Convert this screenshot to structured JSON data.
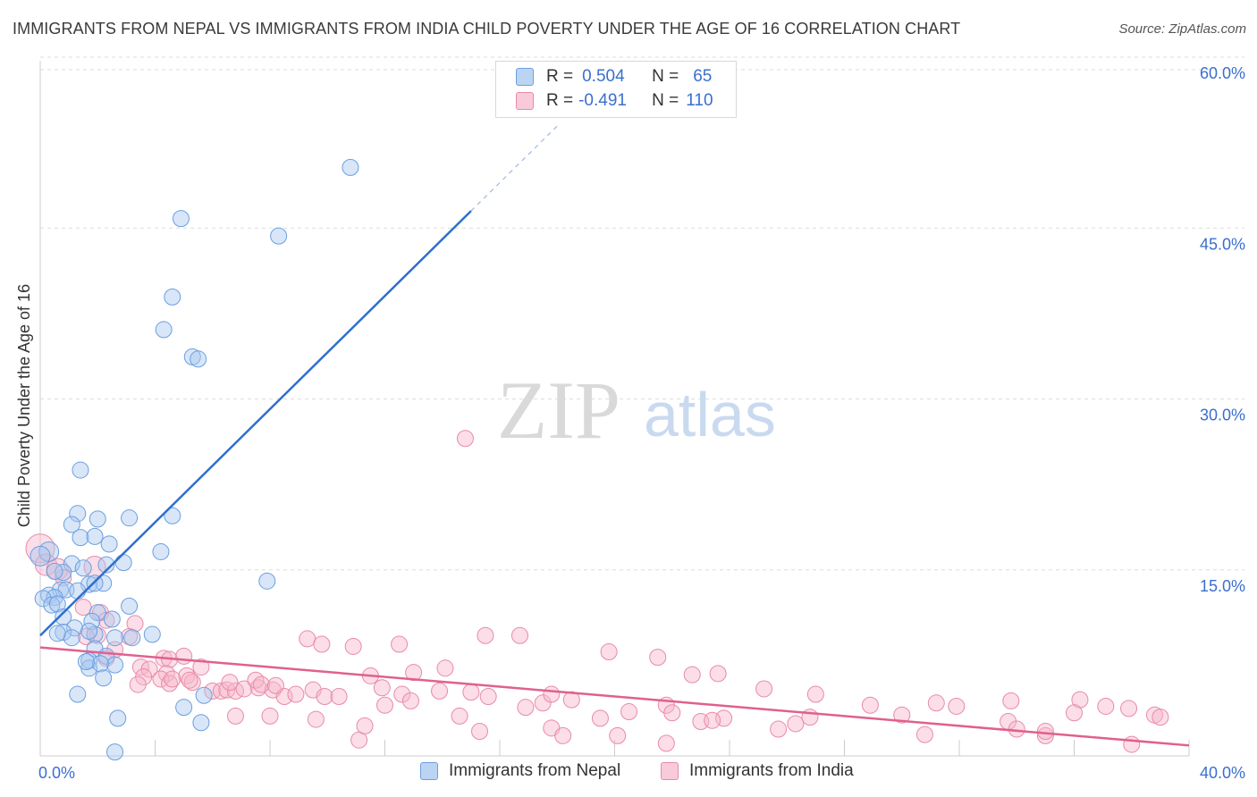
{
  "title": "IMMIGRANTS FROM NEPAL VS IMMIGRANTS FROM INDIA CHILD POVERTY UNDER THE AGE OF 16 CORRELATION CHART",
  "source": "Source: ZipAtlas.com",
  "watermark": {
    "zip": "ZIP",
    "atlas": "atlas"
  },
  "legend": {
    "r_label": "R =",
    "n_label": "N =",
    "nepal": {
      "r": "0.504",
      "n": "65"
    },
    "india": {
      "r": "-0.491",
      "n": "110"
    }
  },
  "colors": {
    "nepal_fill": "#a9c8f0",
    "nepal_stroke": "#6b9fe0",
    "nepal_line": "#2e6fcf",
    "india_fill": "#f6b6ca",
    "india_stroke": "#e98aa8",
    "india_line": "#e0608f",
    "grid": "#dddddd",
    "tick_label": "#3a6fcf"
  },
  "chart_data": {
    "type": "scatter",
    "title": "IMMIGRANTS FROM NEPAL VS IMMIGRANTS FROM INDIA CHILD POVERTY UNDER THE AGE OF 16 CORRELATION CHART",
    "xlabel": "",
    "ylabel": "Child Poverty Under the Age of 16",
    "xlim": [
      0,
      40
    ],
    "ylim": [
      0,
      60
    ],
    "x_tick_labels": [
      "0.0%",
      "40.0%"
    ],
    "y_ticks": [
      15,
      30,
      45,
      60
    ],
    "y_tick_labels": [
      "15.0%",
      "30.0%",
      "45.0%",
      "60.0%"
    ],
    "legend_position": "top-center",
    "series": [
      {
        "name": "Immigrants from Nepal",
        "trend": {
          "x0": 0,
          "y0": 9.5,
          "x1": 15.0,
          "y1": 48.5,
          "dash_to_x": 18.0
        },
        "points": [
          [
            10.8,
            52.5
          ],
          [
            4.9,
            47.8
          ],
          [
            8.3,
            46.2
          ],
          [
            4.6,
            40.6
          ],
          [
            4.3,
            37.6
          ],
          [
            5.3,
            35.1
          ],
          [
            5.5,
            34.9
          ],
          [
            1.4,
            24.7
          ],
          [
            1.3,
            20.7
          ],
          [
            2.0,
            20.2
          ],
          [
            1.1,
            19.7
          ],
          [
            4.6,
            20.5
          ],
          [
            3.1,
            20.3
          ],
          [
            1.4,
            18.5
          ],
          [
            1.9,
            18.6
          ],
          [
            2.4,
            17.9
          ],
          [
            0.3,
            17.2
          ],
          [
            0.0,
            16.8
          ],
          [
            4.2,
            17.2
          ],
          [
            1.1,
            16.1
          ],
          [
            2.9,
            16.2
          ],
          [
            2.3,
            16.0
          ],
          [
            1.5,
            15.7
          ],
          [
            0.8,
            15.3
          ],
          [
            0.5,
            15.4
          ],
          [
            2.2,
            14.3
          ],
          [
            1.7,
            14.2
          ],
          [
            1.9,
            14.3
          ],
          [
            7.9,
            14.5
          ],
          [
            0.7,
            13.7
          ],
          [
            0.9,
            13.7
          ],
          [
            1.3,
            13.6
          ],
          [
            0.3,
            13.2
          ],
          [
            0.5,
            13.0
          ],
          [
            0.1,
            12.9
          ],
          [
            0.4,
            12.3
          ],
          [
            0.6,
            12.4
          ],
          [
            3.1,
            12.2
          ],
          [
            2.0,
            11.6
          ],
          [
            0.8,
            11.2
          ],
          [
            2.5,
            11.0
          ],
          [
            1.8,
            10.8
          ],
          [
            1.2,
            10.2
          ],
          [
            0.8,
            9.8
          ],
          [
            2.6,
            9.3
          ],
          [
            1.9,
            9.6
          ],
          [
            1.7,
            9.9
          ],
          [
            1.1,
            9.3
          ],
          [
            3.2,
            9.3
          ],
          [
            1.9,
            8.3
          ],
          [
            3.9,
            9.6
          ],
          [
            2.3,
            7.6
          ],
          [
            1.7,
            7.2
          ],
          [
            1.7,
            6.5
          ],
          [
            2.6,
            6.8
          ],
          [
            2.1,
            6.9
          ],
          [
            1.6,
            7.1
          ],
          [
            2.2,
            5.6
          ],
          [
            0.6,
            9.7
          ],
          [
            1.3,
            4.1
          ],
          [
            5.7,
            4.0
          ],
          [
            5.0,
            2.9
          ],
          [
            2.7,
            1.9
          ],
          [
            5.6,
            1.5
          ],
          [
            2.6,
            -1.2
          ]
        ]
      },
      {
        "name": "Immigrants from India",
        "trend": {
          "x0": 0,
          "y0": 8.4,
          "x1": 40,
          "y1": -0.6
        },
        "points": [
          [
            0.0,
            17.5
          ],
          [
            0.2,
            16.0
          ],
          [
            0.6,
            15.6
          ],
          [
            1.9,
            15.8
          ],
          [
            0.8,
            14.8
          ],
          [
            1.5,
            12.1
          ],
          [
            2.1,
            11.6
          ],
          [
            2.3,
            10.9
          ],
          [
            3.3,
            10.6
          ],
          [
            2.0,
            9.5
          ],
          [
            1.6,
            9.4
          ],
          [
            14.8,
            27.6
          ],
          [
            3.1,
            9.4
          ],
          [
            2.6,
            8.2
          ],
          [
            2.3,
            7.4
          ],
          [
            4.3,
            7.4
          ],
          [
            4.5,
            7.3
          ],
          [
            5.0,
            7.6
          ],
          [
            5.6,
            6.6
          ],
          [
            3.5,
            6.6
          ],
          [
            3.8,
            6.4
          ],
          [
            4.4,
            6.0
          ],
          [
            3.6,
            5.7
          ],
          [
            5.1,
            5.8
          ],
          [
            5.3,
            5.2
          ],
          [
            4.2,
            5.5
          ],
          [
            3.4,
            5.0
          ],
          [
            4.5,
            5.1
          ],
          [
            6.0,
            4.4
          ],
          [
            6.3,
            4.4
          ],
          [
            6.5,
            4.5
          ],
          [
            6.8,
            4.4
          ],
          [
            7.1,
            4.6
          ],
          [
            7.6,
            4.7
          ],
          [
            8.1,
            4.5
          ],
          [
            8.5,
            3.9
          ],
          [
            8.9,
            4.1
          ],
          [
            9.5,
            4.5
          ],
          [
            9.9,
            3.9
          ],
          [
            10.4,
            3.9
          ],
          [
            6.6,
            5.2
          ],
          [
            7.5,
            5.4
          ],
          [
            7.7,
            5.0
          ],
          [
            8.2,
            4.9
          ],
          [
            9.3,
            9.2
          ],
          [
            9.8,
            8.7
          ],
          [
            10.9,
            8.5
          ],
          [
            12.5,
            8.7
          ],
          [
            13.0,
            6.1
          ],
          [
            14.1,
            6.5
          ],
          [
            15.5,
            9.5
          ],
          [
            16.7,
            9.5
          ],
          [
            19.8,
            8.0
          ],
          [
            21.5,
            7.5
          ],
          [
            23.6,
            6.0
          ],
          [
            22.7,
            5.9
          ],
          [
            25.2,
            4.6
          ],
          [
            27.0,
            4.1
          ],
          [
            11.5,
            5.8
          ],
          [
            11.9,
            4.7
          ],
          [
            12.6,
            4.1
          ],
          [
            12.9,
            3.5
          ],
          [
            13.9,
            4.4
          ],
          [
            15.0,
            4.3
          ],
          [
            15.6,
            3.9
          ],
          [
            16.9,
            2.9
          ],
          [
            17.5,
            3.3
          ],
          [
            17.8,
            4.1
          ],
          [
            18.5,
            3.6
          ],
          [
            19.5,
            1.9
          ],
          [
            20.5,
            2.5
          ],
          [
            21.8,
            3.1
          ],
          [
            22.0,
            2.4
          ],
          [
            23.8,
            1.9
          ],
          [
            25.7,
            0.9
          ],
          [
            26.3,
            1.4
          ],
          [
            28.9,
            3.1
          ],
          [
            30.0,
            2.2
          ],
          [
            31.2,
            3.3
          ],
          [
            31.9,
            3.0
          ],
          [
            33.7,
            1.6
          ],
          [
            33.8,
            3.5
          ],
          [
            35.0,
            0.3
          ],
          [
            36.2,
            3.6
          ],
          [
            37.1,
            3.0
          ],
          [
            37.9,
            2.8
          ],
          [
            38.8,
            2.2
          ],
          [
            14.6,
            2.1
          ],
          [
            15.3,
            0.7
          ],
          [
            11.1,
            -0.1
          ],
          [
            9.6,
            1.8
          ],
          [
            8.0,
            2.1
          ],
          [
            17.8,
            1.0
          ],
          [
            18.2,
            0.3
          ],
          [
            20.1,
            0.3
          ],
          [
            23.0,
            1.6
          ],
          [
            23.4,
            1.7
          ],
          [
            26.8,
            2.0
          ],
          [
            30.8,
            0.4
          ],
          [
            34.0,
            0.9
          ],
          [
            35.0,
            0.7
          ],
          [
            36.0,
            2.4
          ],
          [
            38.0,
            -0.5
          ],
          [
            39.0,
            2.0
          ],
          [
            21.8,
            -0.4
          ],
          [
            11.3,
            1.2
          ],
          [
            12.0,
            3.1
          ],
          [
            6.8,
            2.1
          ],
          [
            5.2,
            5.4
          ],
          [
            4.6,
            5.5
          ]
        ]
      }
    ]
  },
  "bottom_legend": {
    "nepal_label": "Immigrants from Nepal",
    "india_label": "Immigrants from India"
  }
}
